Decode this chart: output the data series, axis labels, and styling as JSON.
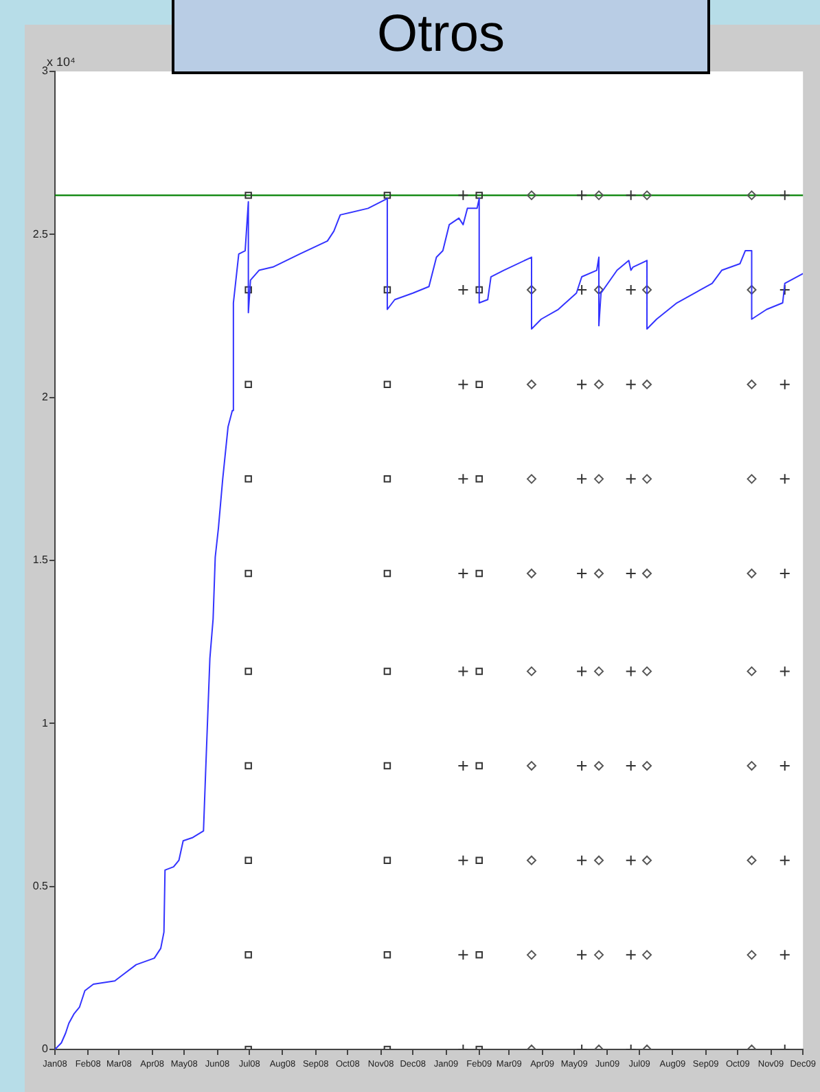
{
  "chart_data": {
    "type": "line",
    "title": "Otros",
    "xlim": [
      "2008-01-01",
      "2009-12-01"
    ],
    "xticks": [
      {
        "value": "2008-01-01",
        "label": "Jan08"
      },
      {
        "value": "2008-02-01",
        "label": "Feb08"
      },
      {
        "value": "2008-03-01",
        "label": "Mar08"
      },
      {
        "value": "2008-04-01",
        "label": "Apr08"
      },
      {
        "value": "2008-05-01",
        "label": "May08"
      },
      {
        "value": "2008-06-01",
        "label": "Jun08"
      },
      {
        "value": "2008-07-01",
        "label": "Jul08"
      },
      {
        "value": "2008-08-01",
        "label": "Aug08"
      },
      {
        "value": "2008-09-01",
        "label": "Sep08"
      },
      {
        "value": "2008-10-01",
        "label": "Oct08"
      },
      {
        "value": "2008-11-01",
        "label": "Nov08"
      },
      {
        "value": "2008-12-01",
        "label": "Dec08"
      },
      {
        "value": "2009-01-01",
        "label": "Jan09"
      },
      {
        "value": "2009-02-01",
        "label": "Feb09"
      },
      {
        "value": "2009-03-01",
        "label": "Mar09"
      },
      {
        "value": "2009-04-01",
        "label": "Apr09"
      },
      {
        "value": "2009-05-01",
        "label": "May09"
      },
      {
        "value": "2009-06-01",
        "label": "Jun09"
      },
      {
        "value": "2009-07-01",
        "label": "Jul09"
      },
      {
        "value": "2009-08-01",
        "label": "Aug09"
      },
      {
        "value": "2009-09-01",
        "label": "Sep09"
      },
      {
        "value": "2009-10-01",
        "label": "Oct09"
      },
      {
        "value": "2009-11-01",
        "label": "Nov09"
      },
      {
        "value": "2009-12-01",
        "label": "Dec09"
      }
    ],
    "ylim": [
      0,
      3
    ],
    "yticks": [
      0,
      0.5,
      1,
      1.5,
      2,
      2.5,
      3
    ],
    "annotations": [
      "x 10⁴"
    ],
    "ref_lines": [
      {
        "axis": "y",
        "value": 2.62,
        "color": "#008000"
      }
    ],
    "series": [
      {
        "marker": "none",
        "color": "#3333ff",
        "x": [
          "2008-01-01",
          "2008-01-07",
          "2008-01-11",
          "2008-01-14",
          "2008-01-19",
          "2008-01-24",
          "2008-01-29",
          "2008-02-06",
          "2008-02-26",
          "2008-03-05",
          "2008-03-17",
          "2008-04-03",
          "2008-04-09",
          "2008-04-12",
          "2008-04-13",
          "2008-04-21",
          "2008-04-26",
          "2008-04-30",
          "2008-05-09",
          "2008-05-19",
          "2008-05-21",
          "2008-05-25",
          "2008-05-28",
          "2008-05-30",
          "2008-06-02",
          "2008-06-06",
          "2008-06-11",
          "2008-06-15",
          "2008-06-16",
          "2008-06-21",
          "2008-06-27",
          "2008-06-30",
          "2008-06-30",
          "2008-07-02",
          "2008-07-10",
          "2008-07-23",
          "2008-08-17",
          "2008-09-12",
          "2008-09-18",
          "2008-09-24",
          "2008-10-20",
          "2008-11-07",
          "2008-11-07",
          "2008-11-14",
          "2008-12-01",
          "2008-12-16",
          "2008-12-23",
          "2008-12-29",
          "2009-01-04",
          "2009-01-13",
          "2009-01-17",
          "2009-01-21",
          "2009-01-30",
          "2009-02-01",
          "2009-02-01",
          "2009-02-09",
          "2009-02-12",
          "2009-02-24",
          "2009-03-22",
          "2009-03-22",
          "2009-03-31",
          "2009-04-16",
          "2009-05-03",
          "2009-05-08",
          "2009-05-22",
          "2009-05-24",
          "2009-05-24",
          "2009-05-26",
          "2009-06-10",
          "2009-06-21",
          "2009-06-23",
          "2009-06-25",
          "2009-07-08",
          "2009-07-08",
          "2009-07-17",
          "2009-08-05",
          "2009-09-07",
          "2009-09-16",
          "2009-10-03",
          "2009-10-08",
          "2009-10-14",
          "2009-10-14",
          "2009-10-28",
          "2009-11-12",
          "2009-11-14",
          "2009-12-01"
        ],
        "values": [
          0,
          0.02,
          0.05,
          0.08,
          0.11,
          0.13,
          0.18,
          0.2,
          0.21,
          0.23,
          0.26,
          0.28,
          0.31,
          0.36,
          0.55,
          0.56,
          0.58,
          0.64,
          0.65,
          0.67,
          0.85,
          1.2,
          1.32,
          1.51,
          1.6,
          1.75,
          1.91,
          1.96,
          2.29,
          2.44,
          2.45,
          2.6,
          2.26,
          2.36,
          2.39,
          2.4,
          2.44,
          2.48,
          2.51,
          2.56,
          2.58,
          2.61,
          2.27,
          2.3,
          2.32,
          2.34,
          2.43,
          2.45,
          2.53,
          2.55,
          2.53,
          2.58,
          2.58,
          2.61,
          2.29,
          2.3,
          2.37,
          2.39,
          2.43,
          2.21,
          2.24,
          2.27,
          2.32,
          2.37,
          2.39,
          2.43,
          2.22,
          2.32,
          2.39,
          2.42,
          2.39,
          2.4,
          2.42,
          2.21,
          2.24,
          2.29,
          2.35,
          2.39,
          2.41,
          2.45,
          2.45,
          2.24,
          2.27,
          2.29,
          2.35,
          2.38
        ]
      },
      {
        "type": "scatter",
        "marker": "square",
        "color": "#333333",
        "x": [
          "2008-06-30",
          "2008-06-30",
          "2008-06-30",
          "2008-06-30",
          "2008-06-30",
          "2008-06-30",
          "2008-06-30",
          "2008-06-30",
          "2008-06-30",
          "2008-06-30",
          "2008-11-07",
          "2008-11-07",
          "2008-11-07",
          "2008-11-07",
          "2008-11-07",
          "2008-11-07",
          "2008-11-07",
          "2008-11-07",
          "2008-11-07",
          "2008-11-07",
          "2009-02-01",
          "2009-02-01",
          "2009-02-01",
          "2009-02-01",
          "2009-02-01",
          "2009-02-01",
          "2009-02-01",
          "2009-02-01",
          "2009-02-01",
          "2009-02-01"
        ],
        "values": [
          0,
          0.29,
          0.58,
          0.87,
          1.16,
          1.46,
          1.75,
          2.04,
          2.33,
          2.62,
          0,
          0.29,
          0.58,
          0.87,
          1.16,
          1.46,
          1.75,
          2.04,
          2.33,
          2.62,
          0,
          0.29,
          0.58,
          0.87,
          1.16,
          1.46,
          1.75,
          2.04,
          2.33,
          2.62
        ]
      },
      {
        "type": "scatter",
        "marker": "cross",
        "color": "#333333",
        "x": [
          "2009-01-17",
          "2009-01-17",
          "2009-01-17",
          "2009-01-17",
          "2009-01-17",
          "2009-01-17",
          "2009-01-17",
          "2009-01-17",
          "2009-01-17",
          "2009-01-17",
          "2009-05-08",
          "2009-05-08",
          "2009-05-08",
          "2009-05-08",
          "2009-05-08",
          "2009-05-08",
          "2009-05-08",
          "2009-05-08",
          "2009-05-08",
          "2009-05-08",
          "2009-06-23",
          "2009-06-23",
          "2009-06-23",
          "2009-06-23",
          "2009-06-23",
          "2009-06-23",
          "2009-06-23",
          "2009-06-23",
          "2009-06-23",
          "2009-06-23",
          "2009-11-14",
          "2009-11-14",
          "2009-11-14",
          "2009-11-14",
          "2009-11-14",
          "2009-11-14",
          "2009-11-14",
          "2009-11-14",
          "2009-11-14",
          "2009-11-14"
        ],
        "values": [
          0,
          0.29,
          0.58,
          0.87,
          1.16,
          1.46,
          1.75,
          2.04,
          2.33,
          2.62,
          0,
          0.29,
          0.58,
          0.87,
          1.16,
          1.46,
          1.75,
          2.04,
          2.33,
          2.62,
          0,
          0.29,
          0.58,
          0.87,
          1.16,
          1.46,
          1.75,
          2.04,
          2.33,
          2.62,
          0,
          0.29,
          0.58,
          0.87,
          1.16,
          1.46,
          1.75,
          2.04,
          2.33,
          2.62
        ]
      },
      {
        "type": "scatter",
        "marker": "diamond",
        "color": "#555555",
        "x": [
          "2009-03-22",
          "2009-03-22",
          "2009-03-22",
          "2009-03-22",
          "2009-03-22",
          "2009-03-22",
          "2009-03-22",
          "2009-03-22",
          "2009-03-22",
          "2009-03-22",
          "2009-05-24",
          "2009-05-24",
          "2009-05-24",
          "2009-05-24",
          "2009-05-24",
          "2009-05-24",
          "2009-05-24",
          "2009-05-24",
          "2009-05-24",
          "2009-05-24",
          "2009-07-08",
          "2009-07-08",
          "2009-07-08",
          "2009-07-08",
          "2009-07-08",
          "2009-07-08",
          "2009-07-08",
          "2009-07-08",
          "2009-07-08",
          "2009-07-08",
          "2009-10-14",
          "2009-10-14",
          "2009-10-14",
          "2009-10-14",
          "2009-10-14",
          "2009-10-14",
          "2009-10-14",
          "2009-10-14",
          "2009-10-14",
          "2009-10-14"
        ],
        "values": [
          0,
          0.29,
          0.58,
          0.87,
          1.16,
          1.46,
          1.75,
          2.04,
          2.33,
          2.62,
          0,
          0.29,
          0.58,
          0.87,
          1.16,
          1.46,
          1.75,
          2.04,
          2.33,
          2.62,
          0,
          0.29,
          0.58,
          0.87,
          1.16,
          1.46,
          1.75,
          2.04,
          2.33,
          2.62,
          0,
          0.29,
          0.58,
          0.87,
          1.16,
          1.46,
          1.75,
          2.04,
          2.33,
          2.62
        ]
      }
    ]
  }
}
